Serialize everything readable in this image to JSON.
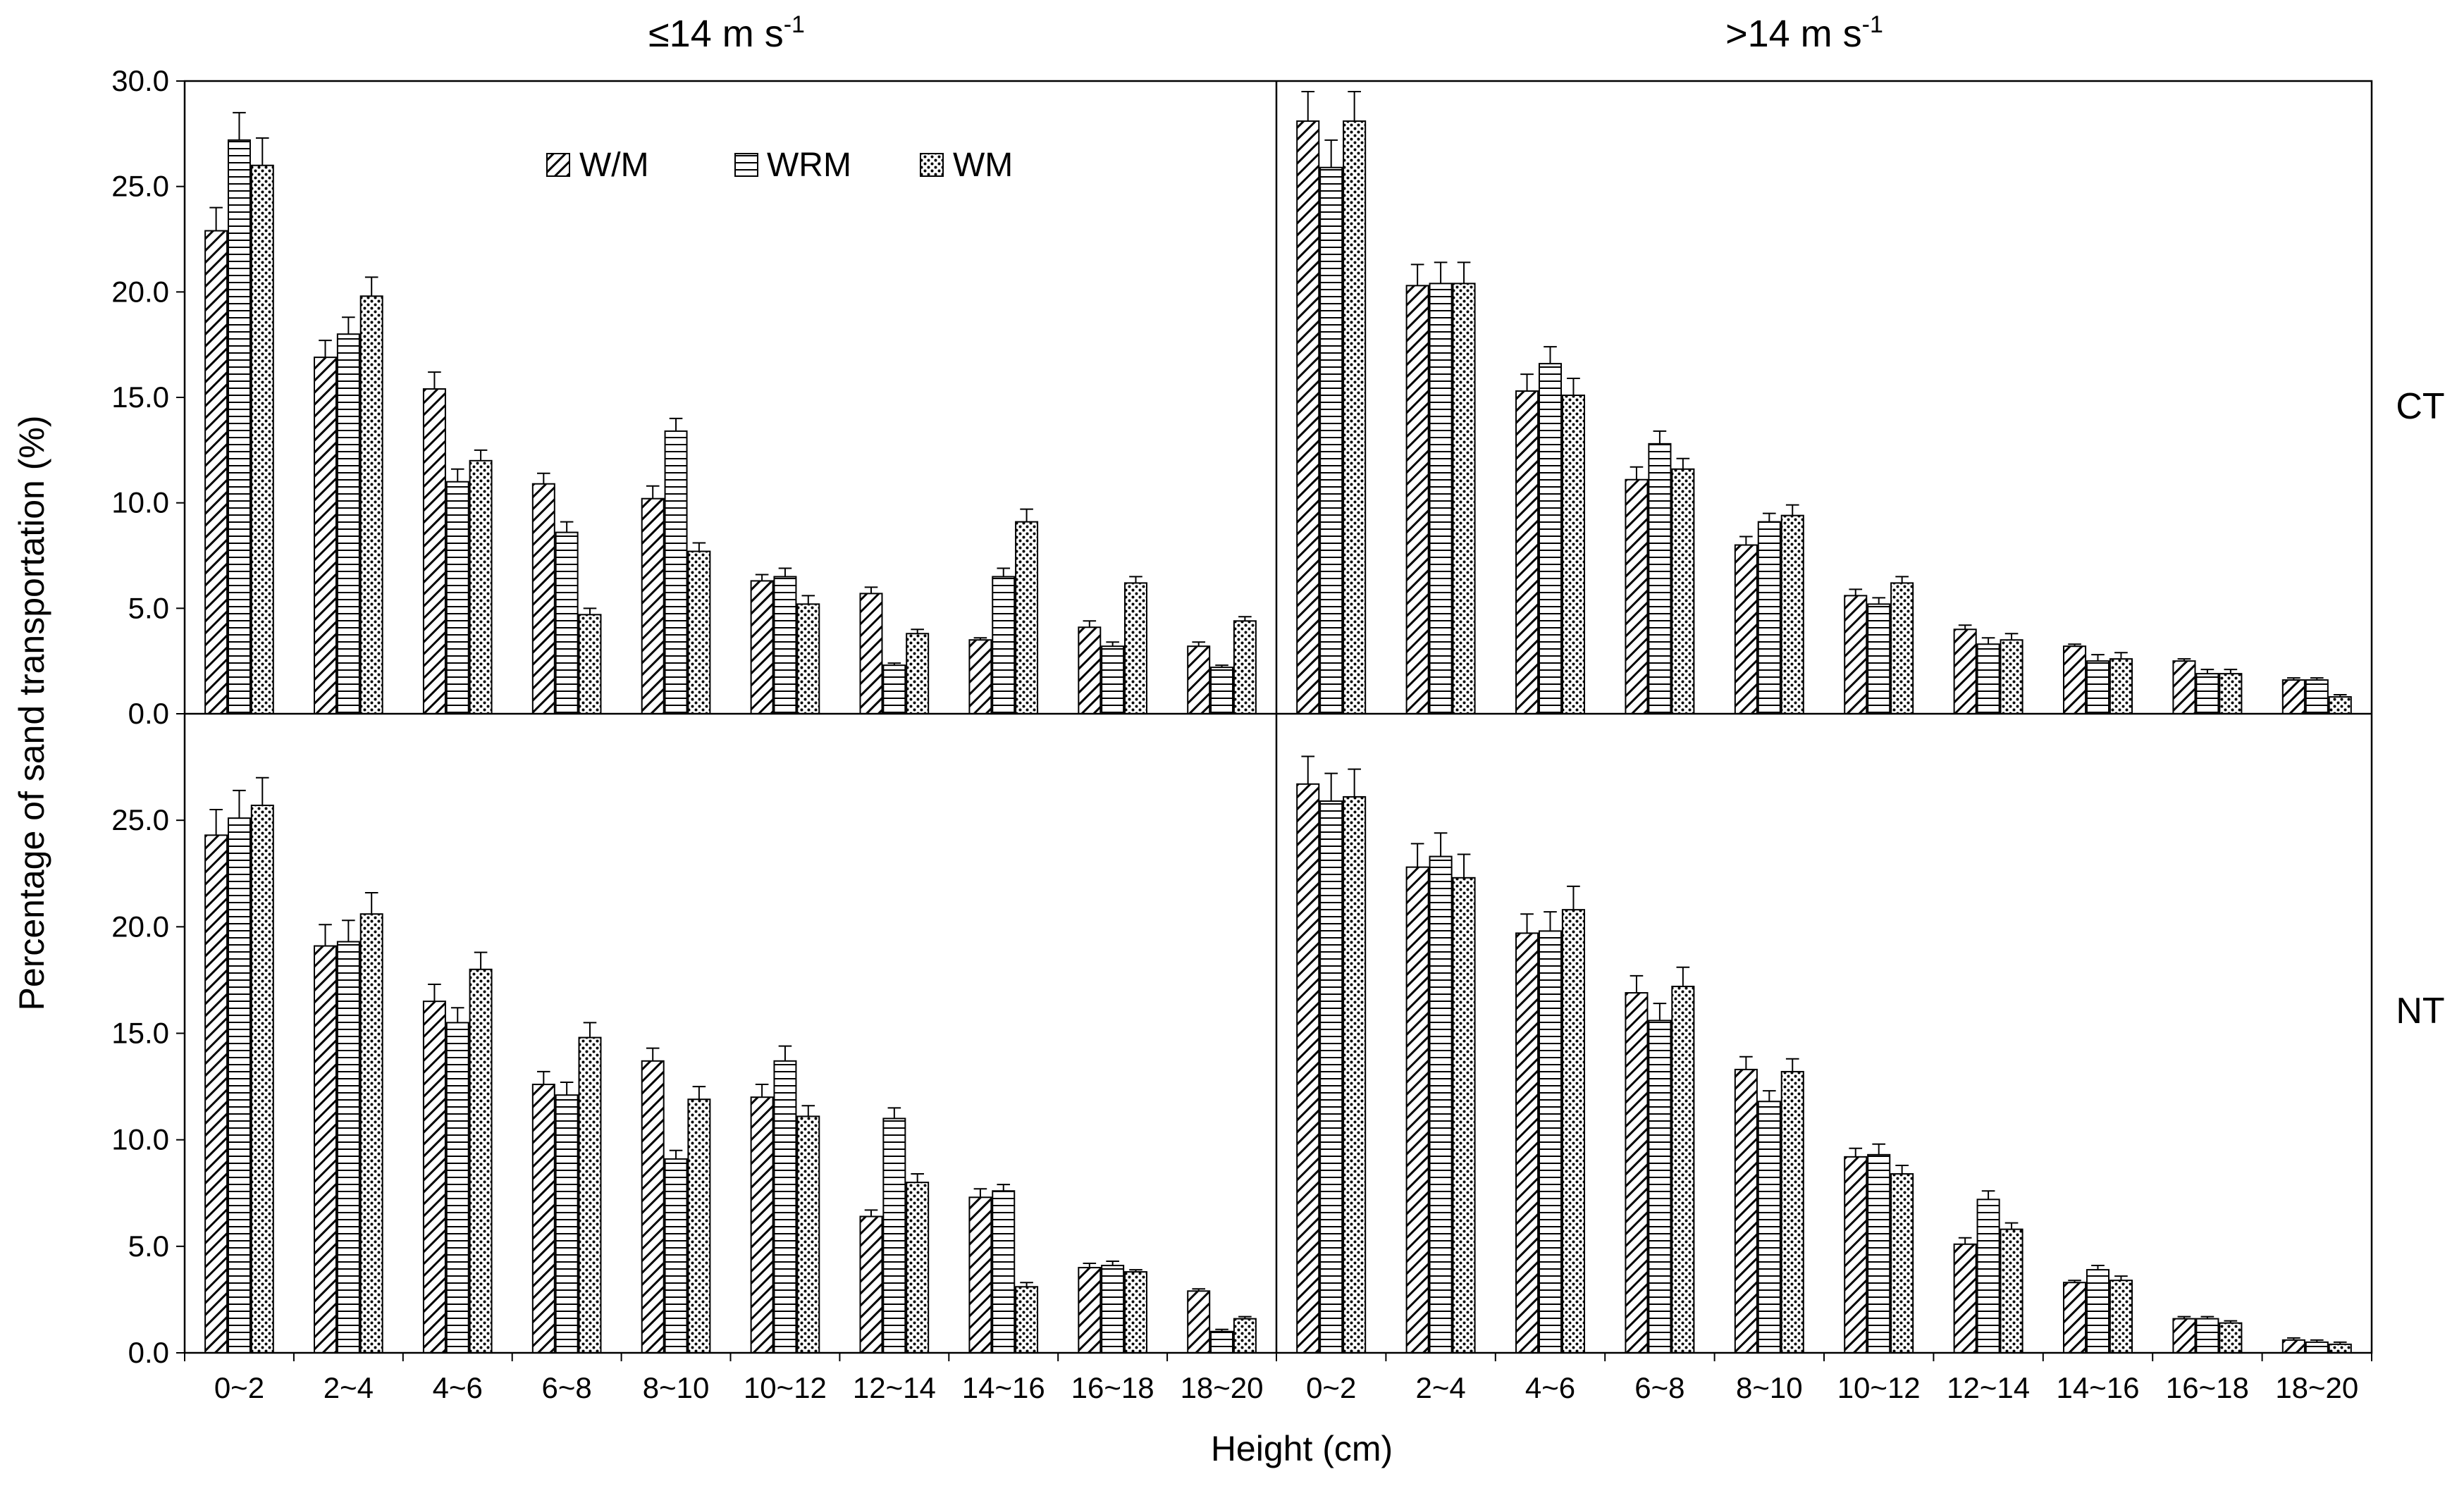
{
  "chart_data": {
    "type": "bar",
    "ylabel": "Percentage of sand transportation (%)",
    "xlabel": "Height (cm)",
    "columns": [
      {
        "title_base": "≤14 m s",
        "title_sup": "-1"
      },
      {
        "title_base": ">14 m s",
        "title_sup": "-1"
      }
    ],
    "rows": [
      {
        "label": "CT",
        "ylim": [
          0,
          30
        ],
        "ticks": [
          "0.0",
          "5.0",
          "10.0",
          "15.0",
          "20.0",
          "25.0",
          "30.0"
        ]
      },
      {
        "label": "NT",
        "ylim": [
          0,
          30
        ],
        "ticks": [
          "0.0",
          "5.0",
          "10.0",
          "15.0",
          "20.0",
          "25.0"
        ]
      }
    ],
    "categories": [
      "0~2",
      "2~4",
      "4~6",
      "6~8",
      "8~10",
      "10~12",
      "12~14",
      "14~16",
      "16~18",
      "18~20"
    ],
    "series_names": [
      "W/M",
      "WRM",
      "WM"
    ],
    "legend": {
      "items": [
        "W/M",
        "WRM",
        "WM"
      ],
      "position": "top-center of top-left panel"
    },
    "panels": [
      {
        "row": "CT",
        "column": "≤14 m s-1",
        "series": [
          {
            "name": "W/M",
            "values": [
              22.9,
              16.9,
              15.4,
              10.9,
              10.2,
              6.3,
              5.7,
              3.5,
              4.1,
              3.2
            ],
            "errors": [
              1.1,
              0.8,
              0.8,
              0.5,
              0.6,
              0.3,
              0.3,
              0.1,
              0.3,
              0.2
            ]
          },
          {
            "name": "WRM",
            "values": [
              27.2,
              18.0,
              11.0,
              8.6,
              13.4,
              6.5,
              2.3,
              6.5,
              3.2,
              2.2
            ],
            "errors": [
              1.3,
              0.8,
              0.6,
              0.5,
              0.6,
              0.4,
              0.1,
              0.4,
              0.2,
              0.1
            ]
          },
          {
            "name": "WM",
            "values": [
              26.0,
              19.8,
              12.0,
              4.7,
              7.7,
              5.2,
              3.8,
              9.1,
              6.2,
              4.4
            ],
            "errors": [
              1.3,
              0.9,
              0.5,
              0.3,
              0.4,
              0.4,
              0.2,
              0.6,
              0.3,
              0.2
            ]
          }
        ]
      },
      {
        "row": "CT",
        "column": ">14 m s-1",
        "series": [
          {
            "name": "W/M",
            "values": [
              28.1,
              20.3,
              15.3,
              11.1,
              8.0,
              5.6,
              4.0,
              3.2,
              2.5,
              1.6
            ],
            "errors": [
              1.4,
              1.0,
              0.8,
              0.6,
              0.4,
              0.3,
              0.2,
              0.1,
              0.1,
              0.1
            ]
          },
          {
            "name": "WRM",
            "values": [
              25.9,
              20.4,
              16.6,
              12.8,
              9.1,
              5.2,
              3.3,
              2.5,
              1.9,
              1.6
            ],
            "errors": [
              1.3,
              1.0,
              0.8,
              0.6,
              0.4,
              0.3,
              0.3,
              0.3,
              0.2,
              0.1
            ]
          },
          {
            "name": "WM",
            "values": [
              28.1,
              20.4,
              15.1,
              11.6,
              9.4,
              6.2,
              3.5,
              2.6,
              1.9,
              0.8
            ],
            "errors": [
              1.4,
              1.0,
              0.8,
              0.5,
              0.5,
              0.3,
              0.3,
              0.3,
              0.2,
              0.1
            ]
          }
        ]
      },
      {
        "row": "NT",
        "column": "≤14 m s-1",
        "series": [
          {
            "name": "W/M",
            "values": [
              24.3,
              19.1,
              16.5,
              12.6,
              13.7,
              12.0,
              6.4,
              7.3,
              4.0,
              2.9
            ],
            "errors": [
              1.2,
              1.0,
              0.8,
              0.6,
              0.6,
              0.6,
              0.3,
              0.4,
              0.2,
              0.1
            ]
          },
          {
            "name": "WRM",
            "values": [
              25.1,
              19.3,
              15.5,
              12.1,
              9.1,
              13.7,
              11.0,
              7.6,
              4.1,
              1.0
            ],
            "errors": [
              1.3,
              1.0,
              0.7,
              0.6,
              0.4,
              0.7,
              0.5,
              0.3,
              0.2,
              0.1
            ]
          },
          {
            "name": "WM",
            "values": [
              25.7,
              20.6,
              18.0,
              14.8,
              11.9,
              11.1,
              8.0,
              3.1,
              3.8,
              1.6
            ],
            "errors": [
              1.3,
              1.0,
              0.8,
              0.7,
              0.6,
              0.5,
              0.4,
              0.2,
              0.1,
              0.1
            ]
          }
        ]
      },
      {
        "row": "NT",
        "column": ">14 m s-1",
        "series": [
          {
            "name": "W/M",
            "values": [
              26.7,
              22.8,
              19.7,
              16.9,
              13.3,
              9.2,
              5.1,
              3.3,
              1.6,
              0.6
            ],
            "errors": [
              1.3,
              1.1,
              0.9,
              0.8,
              0.6,
              0.4,
              0.3,
              0.1,
              0.1,
              0.1
            ]
          },
          {
            "name": "WRM",
            "values": [
              25.9,
              23.3,
              19.8,
              15.6,
              11.8,
              9.3,
              7.2,
              3.9,
              1.6,
              0.5
            ],
            "errors": [
              1.3,
              1.1,
              0.9,
              0.8,
              0.5,
              0.5,
              0.4,
              0.2,
              0.1,
              0.1
            ]
          },
          {
            "name": "WM",
            "values": [
              26.1,
              22.3,
              20.8,
              17.2,
              13.2,
              8.4,
              5.8,
              3.4,
              1.4,
              0.4
            ],
            "errors": [
              1.3,
              1.1,
              1.1,
              0.9,
              0.6,
              0.4,
              0.3,
              0.2,
              0.1,
              0.1
            ]
          }
        ]
      }
    ]
  }
}
